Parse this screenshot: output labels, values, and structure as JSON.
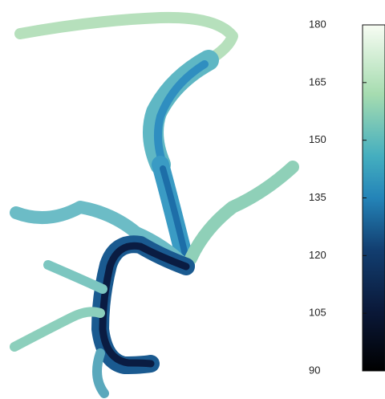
{
  "colorbar": {
    "range": [
      90,
      180
    ],
    "ticks": [
      180,
      165,
      150,
      135,
      120,
      105,
      90
    ]
  }
}
